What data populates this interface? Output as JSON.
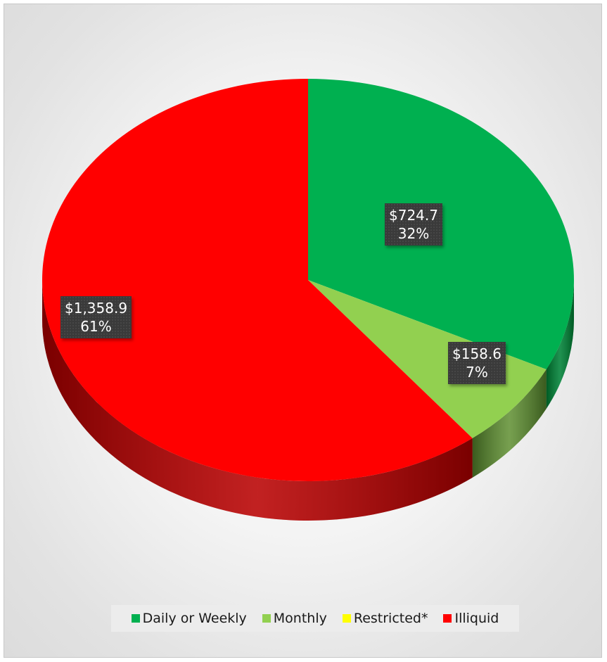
{
  "chart_data": {
    "type": "pie",
    "title": "",
    "slices": [
      {
        "name": "Daily or Weekly",
        "value": 724.7,
        "percent": 32,
        "value_label": "$724.7",
        "percent_label": "32%",
        "color": "#00b050",
        "side_color": "#005a24"
      },
      {
        "name": "Monthly",
        "value": 158.6,
        "percent": 7,
        "value_label": "$158.6",
        "percent_label": "7%",
        "color": "#92d050",
        "side_color": "#3a5a1e"
      },
      {
        "name": "Restricted*",
        "value": 0,
        "percent": 0,
        "value_label": "",
        "percent_label": "",
        "color": "#ffff00",
        "side_color": "#8a8a00"
      },
      {
        "name": "Illiquid",
        "value": 1358.9,
        "percent": 61,
        "value_label": "$1,358.9",
        "percent_label": "61%",
        "color": "#ff0000",
        "side_color": "#7a0000"
      }
    ],
    "legend_position": "bottom",
    "style": "3d"
  }
}
